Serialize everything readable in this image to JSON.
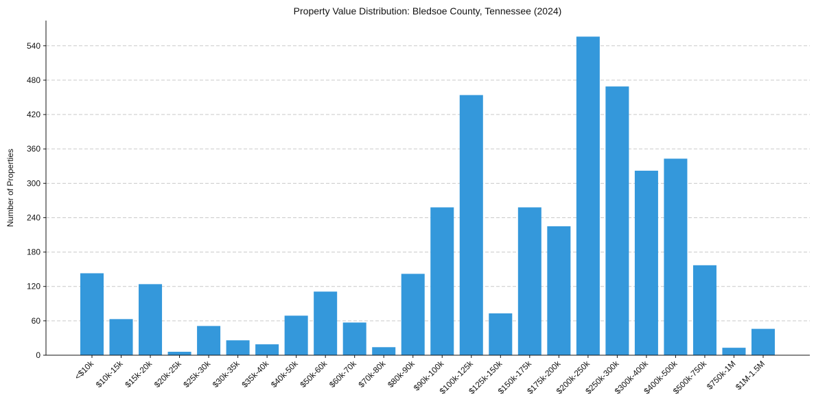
{
  "chart_data": {
    "type": "bar",
    "title": "Property Value Distribution: Bledsoe County, Tennessee (2024)",
    "xlabel": "",
    "ylabel": "Number of Properties",
    "categories": [
      "<$10k",
      "$10k-15k",
      "$15k-20k",
      "$20k-25k",
      "$25k-30k",
      "$30k-35k",
      "$35k-40k",
      "$40k-50k",
      "$50k-60k",
      "$60k-70k",
      "$70k-80k",
      "$80k-90k",
      "$90k-100k",
      "$100k-125k",
      "$125k-150k",
      "$150k-175k",
      "$175k-200k",
      "$200k-250k",
      "$250k-300k",
      "$300k-400k",
      "$400k-500k",
      "$500k-750k",
      "$750k-1M",
      "$1M-1.5M"
    ],
    "values": [
      143,
      63,
      124,
      6,
      51,
      26,
      19,
      69,
      111,
      57,
      14,
      142,
      258,
      454,
      73,
      258,
      225,
      556,
      469,
      322,
      343,
      157,
      13,
      46
    ],
    "ylim": [
      0,
      584
    ],
    "yticks": [
      0,
      60,
      120,
      180,
      240,
      300,
      360,
      420,
      480,
      540
    ],
    "grid": "y",
    "bar_color": "#3498db",
    "grid_color": "#c9c9c9",
    "axis_color": "#111111"
  }
}
